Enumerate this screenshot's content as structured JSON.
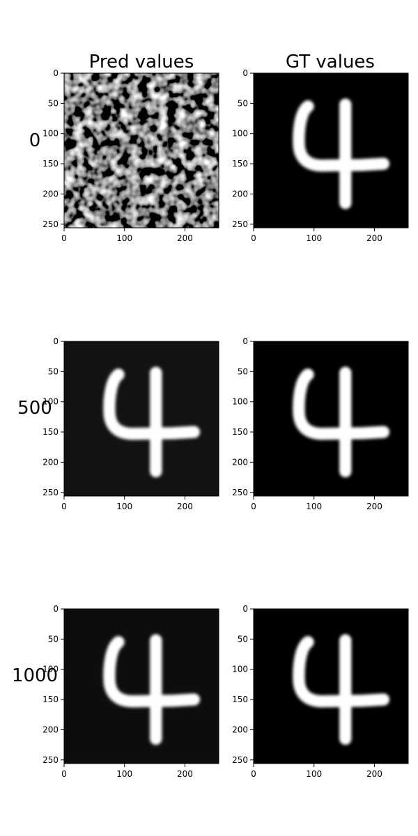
{
  "figure": {
    "column_titles": [
      "Pred values",
      "GT values"
    ],
    "row_labels": [
      "0",
      "500",
      "1000"
    ]
  },
  "chart_data": {
    "type": "heatmap",
    "grid": {
      "rows": 3,
      "cols": 2
    },
    "axes": {
      "xlim": [
        0,
        256
      ],
      "ylim": [
        256,
        0
      ],
      "xticks": [
        0,
        100,
        200
      ],
      "yticks": [
        0,
        50,
        100,
        150,
        200,
        250
      ],
      "y_inverted": true
    },
    "colormap": "gray",
    "panels": [
      {
        "row_label": "0",
        "column": "Pred values",
        "content": "noise",
        "background_level": 0.05
      },
      {
        "row_label": "0",
        "column": "GT values",
        "content": "digit-4",
        "background_level": 0.0
      },
      {
        "row_label": "500",
        "column": "Pred values",
        "content": "digit-4",
        "background_level": 0.07
      },
      {
        "row_label": "500",
        "column": "GT values",
        "content": "digit-4",
        "background_level": 0.0
      },
      {
        "row_label": "1000",
        "column": "Pred values",
        "content": "digit-4",
        "background_level": 0.05
      },
      {
        "row_label": "1000",
        "column": "GT values",
        "content": "digit-4",
        "background_level": 0.0
      }
    ]
  }
}
